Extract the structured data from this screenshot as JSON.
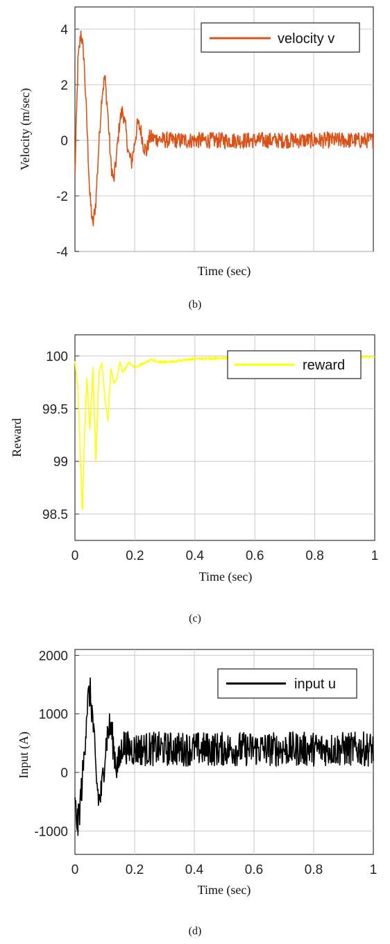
{
  "captions": {
    "b": "(b)",
    "c": "(c)",
    "d": "(d)"
  },
  "chart_data": [
    {
      "type": "line",
      "xlabel": "Time (sec)",
      "ylabel": "Velocity (m/sec)",
      "xlim": [
        0,
        1
      ],
      "ylim": [
        -4,
        4.8
      ],
      "yticks": [
        4,
        2,
        0,
        -2,
        -4
      ],
      "xticks": [],
      "grid": true,
      "legend": "top-right",
      "series": [
        {
          "name": "velocity v",
          "color": "#d95319",
          "x": [
            0,
            0.01,
            0.02,
            0.03,
            0.04,
            0.05,
            0.06,
            0.07,
            0.08,
            0.09,
            0.1,
            0.11,
            0.12,
            0.13,
            0.14,
            0.15,
            0.16,
            0.17,
            0.18,
            0.19,
            0.2,
            0.21,
            0.22,
            0.23,
            0.24,
            0.25,
            0.3,
            0.4,
            0.5,
            0.6,
            0.7,
            0.8,
            0.9,
            1.0
          ],
          "values": [
            -1.3,
            2.8,
            3.9,
            3.0,
            0.6,
            -2.0,
            -3.1,
            -2.2,
            -0.2,
            1.6,
            2.3,
            1.0,
            -0.8,
            -1.5,
            -0.5,
            0.7,
            1.1,
            0.4,
            -0.5,
            -0.8,
            -0.1,
            0.6,
            0.4,
            -0.2,
            -0.4,
            0.1,
            0.0,
            0.0,
            0.0,
            0.0,
            0.0,
            0.0,
            0.0,
            0.0
          ],
          "noise": 0.3
        }
      ]
    },
    {
      "type": "line",
      "xlabel": "Time (sec)",
      "ylabel": "Reward",
      "xlim": [
        0,
        1
      ],
      "ylim": [
        98.25,
        100.2
      ],
      "yticks": [
        "100",
        "99.5",
        "99",
        "98.5"
      ],
      "xticks": [
        "0",
        "0.2",
        "0.4",
        "0.6",
        "0.8",
        "1"
      ],
      "grid": true,
      "legend": "top-right",
      "series": [
        {
          "name": "reward",
          "color": "#ffff00",
          "x": [
            0,
            0.01,
            0.02,
            0.025,
            0.03,
            0.04,
            0.05,
            0.06,
            0.07,
            0.08,
            0.09,
            0.1,
            0.11,
            0.12,
            0.13,
            0.14,
            0.15,
            0.16,
            0.18,
            0.2,
            0.25,
            0.3,
            0.4,
            0.5,
            0.6,
            0.7,
            0.8,
            0.9,
            1.0
          ],
          "values": [
            99.95,
            99.7,
            98.9,
            98.48,
            99.1,
            99.8,
            99.3,
            99.9,
            99.0,
            99.85,
            99.95,
            99.6,
            99.4,
            99.9,
            99.75,
            99.8,
            99.95,
            99.85,
            99.95,
            99.9,
            99.97,
            99.95,
            99.98,
            99.99,
            100.0,
            100.0,
            100.0,
            100.0,
            100.0
          ],
          "noise": 0.02
        }
      ]
    },
    {
      "type": "line",
      "xlabel": "Time (sec)",
      "ylabel": "Input (A)",
      "xlim": [
        0,
        1
      ],
      "ylim": [
        -1400,
        2100
      ],
      "yticks": [
        "2000",
        "1000",
        "0",
        "-1000"
      ],
      "xticks": [
        "0",
        "0.2",
        "0.4",
        "0.6",
        "0.8",
        "1"
      ],
      "grid": true,
      "legend": "top-right",
      "series": [
        {
          "name": "input u",
          "color": "#000000",
          "x": [
            0,
            0.01,
            0.02,
            0.03,
            0.04,
            0.05,
            0.06,
            0.07,
            0.08,
            0.09,
            0.1,
            0.11,
            0.12,
            0.13,
            0.14,
            0.15,
            0.16,
            0.17,
            0.18,
            0.2,
            0.25,
            0.3,
            0.4,
            0.5,
            0.6,
            0.7,
            0.8,
            0.9,
            1.0
          ],
          "values": [
            -600,
            -900,
            -400,
            200,
            1100,
            1400,
            900,
            0,
            -500,
            -300,
            300,
            700,
            800,
            400,
            100,
            200,
            500,
            450,
            400,
            400,
            400,
            400,
            400,
            400,
            400,
            400,
            400,
            400,
            400
          ],
          "noise": 300
        }
      ]
    }
  ]
}
